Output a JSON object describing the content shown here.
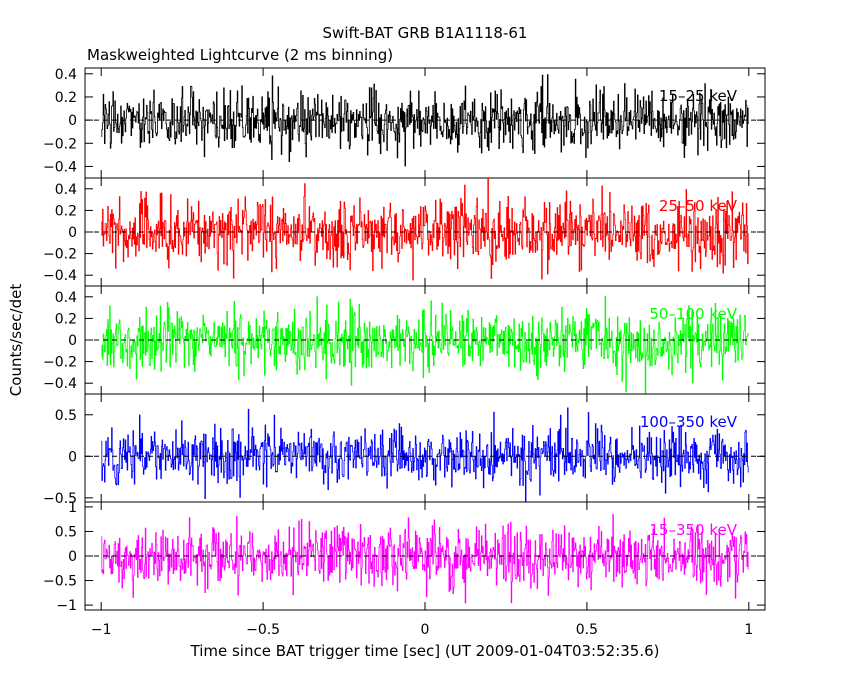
{
  "chart_data": {
    "type": "line",
    "title": "Swift-BAT GRB B1A1118-61",
    "subtitle": "Maskweighted Lightcurve (2 ms binning)",
    "xlabel": "Time since BAT trigger time [sec] (UT 2009-01-04T03:52:35.6)",
    "ylabel": "Counts/sec/det",
    "xlim": [
      -1.05,
      1.05
    ],
    "x_ticks": [
      -1,
      -0.5,
      0,
      0.5,
      1
    ],
    "x_tick_labels": [
      "−1",
      "−0.5",
      "0",
      "0.5",
      "1"
    ],
    "x_range": [
      -1.0,
      1.0
    ],
    "binning_sec": 0.002,
    "zero_line": "dashed",
    "panels": [
      {
        "band": "15–25 keV",
        "color": "#000000",
        "ylim": [
          -0.5,
          0.45
        ],
        "yticks": [
          -0.4,
          -0.2,
          0,
          0.2,
          0.4
        ],
        "ytick_labels": [
          "−0.4",
          "−0.2",
          "0",
          "0.2",
          "0.4"
        ],
        "noise_sigma": 0.13
      },
      {
        "band": "25–50 keV",
        "color": "#ff0000",
        "ylim": [
          -0.5,
          0.5
        ],
        "yticks": [
          -0.4,
          -0.2,
          0,
          0.2,
          0.4
        ],
        "ytick_labels": [
          "−0.4",
          "−0.2",
          "0",
          "0.2",
          "0.4"
        ],
        "noise_sigma": 0.15
      },
      {
        "band": "50–100 keV",
        "color": "#00ff00",
        "ylim": [
          -0.5,
          0.5
        ],
        "yticks": [
          -0.4,
          -0.2,
          0,
          0.2,
          0.4
        ],
        "ytick_labels": [
          "−0.4",
          "−0.2",
          "0",
          "0.2",
          "0.4"
        ],
        "noise_sigma": 0.14
      },
      {
        "band": "100–350 keV",
        "color": "#0000ff",
        "ylim": [
          -0.55,
          0.75
        ],
        "yticks": [
          -0.5,
          0,
          0.5
        ],
        "ytick_labels": [
          "−0.5",
          "0",
          "0.5"
        ],
        "noise_sigma": 0.17
      },
      {
        "band": "15–350 keV",
        "color": "#ff00ff",
        "ylim": [
          -1.1,
          1.1
        ],
        "yticks": [
          -1,
          -0.5,
          0,
          0.5,
          1
        ],
        "ytick_labels": [
          "−1",
          "−0.5",
          "0",
          "0.5",
          "1"
        ],
        "noise_sigma": 0.3
      }
    ]
  }
}
